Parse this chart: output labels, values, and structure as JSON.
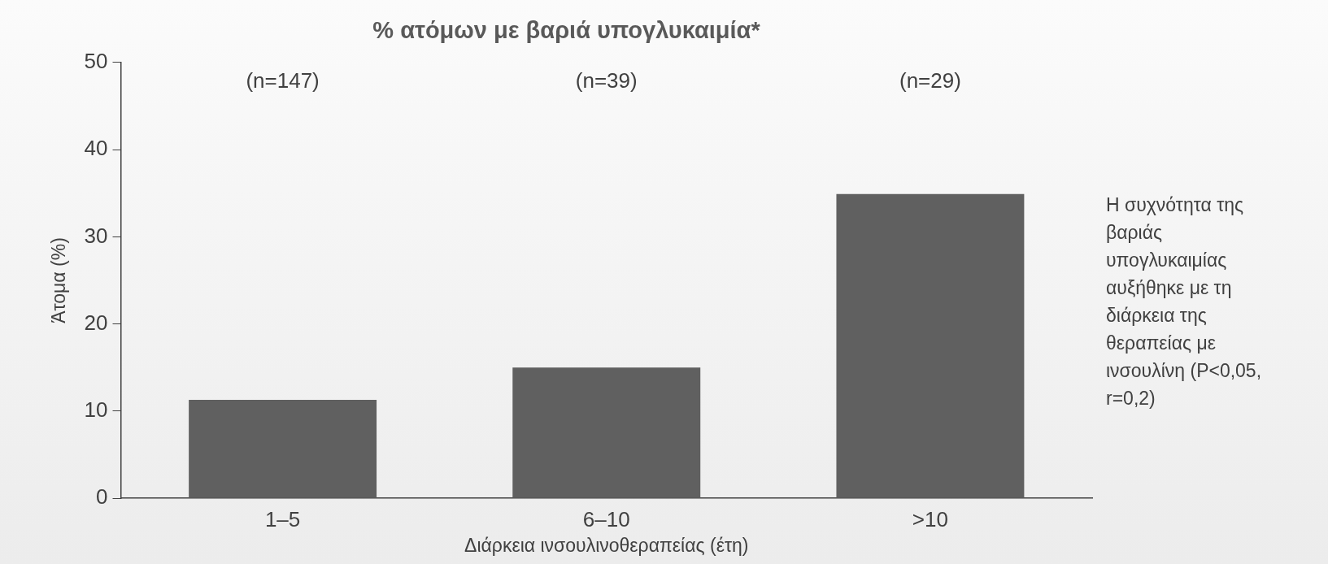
{
  "chart_data": {
    "type": "bar",
    "title": "% ατόμων με βαριά υπογλυκαιμία*",
    "xlabel": "Διάρκεια ινσουλινοθεραπείας (έτη)",
    "ylabel": "Άτομα (%)",
    "categories": [
      "1–5",
      "6–10",
      ">10"
    ],
    "values": [
      11.3,
      15,
      34.9
    ],
    "color": "#606060",
    "ylim": [
      0,
      50
    ],
    "yticks": [
      0,
      10,
      20,
      30,
      40,
      50
    ],
    "grid": false,
    "legend": false,
    "annotations": [
      "(n=147)",
      "(n=39)",
      "(n=29)",
      "Η συχνότητα της βαριάς υπογλυκαιμίας αυξήθηκε με τη διάρκεια της θεραπείας με ινσουλίνη (P<0,05, r=0,2)"
    ]
  }
}
